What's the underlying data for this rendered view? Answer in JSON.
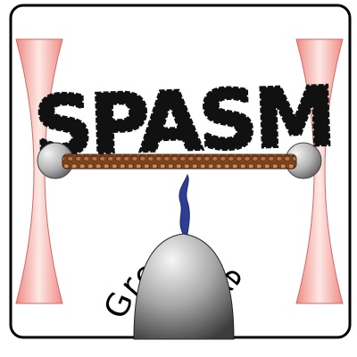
{
  "logo": {
    "title": "SPASM",
    "subtitle": "Greenberg Lab"
  },
  "colors": {
    "border": "#000000",
    "background": "#ffffff",
    "beam_edge": "#f08a84",
    "beam_center": "#fde8e4",
    "bead_light": "#f2f2f2",
    "bead_dark": "#6e6e6e",
    "filament": "#b06a3c",
    "filament_dark": "#6a3a1c",
    "myosin": "#2e3f93",
    "title_ink": "#111111"
  }
}
